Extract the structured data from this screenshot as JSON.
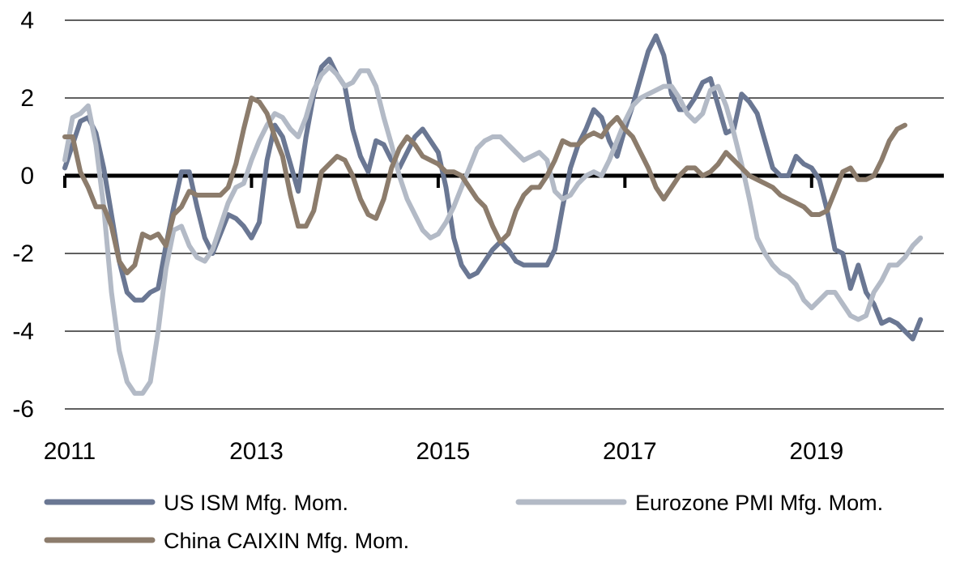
{
  "chart_data": {
    "type": "line",
    "title": "",
    "xlabel": "",
    "ylabel": "",
    "x_start": "2011-01",
    "x_step": "monthly",
    "xlim": [
      "2011-01",
      "2020-06"
    ],
    "ylim": [
      -6,
      4
    ],
    "y_ticks": [
      4,
      2,
      0,
      -2,
      -4,
      -6
    ],
    "y_tick_labels": [
      "4",
      "2",
      "0",
      "-2",
      "-4",
      "-6"
    ],
    "x_ticks": [
      "2011-01",
      "2013-01",
      "2015-01",
      "2017-01",
      "2019-01"
    ],
    "x_tick_labels": [
      "2011",
      "2013",
      "2015",
      "2017",
      "2019"
    ],
    "grid": true,
    "legend_position": "bottom",
    "series": [
      {
        "name": "US ISM Mfg. Mom.",
        "color": "#6a7793",
        "values": [
          0.2,
          0.8,
          1.4,
          1.5,
          1.1,
          0.2,
          -1.0,
          -2.2,
          -3.0,
          -3.2,
          -3.2,
          -3.0,
          -2.9,
          -1.8,
          -0.8,
          0.1,
          0.1,
          -0.8,
          -1.6,
          -2.0,
          -1.5,
          -1.0,
          -1.1,
          -1.3,
          -1.6,
          -1.2,
          0.4,
          1.3,
          1.0,
          0.3,
          -0.4,
          1.0,
          2.1,
          2.8,
          3.0,
          2.6,
          2.3,
          1.2,
          0.5,
          0.1,
          0.9,
          0.8,
          0.4,
          0.2,
          0.6,
          1.0,
          1.2,
          0.9,
          0.6,
          -0.3,
          -1.6,
          -2.3,
          -2.6,
          -2.5,
          -2.2,
          -1.9,
          -1.7,
          -1.9,
          -2.2,
          -2.3,
          -2.3,
          -2.3,
          -2.3,
          -1.9,
          -0.8,
          0.2,
          0.8,
          1.2,
          1.7,
          1.5,
          0.9,
          0.5,
          1.2,
          1.8,
          2.5,
          3.2,
          3.6,
          3.1,
          2.1,
          1.7,
          1.7,
          2.0,
          2.4,
          2.5,
          1.8,
          1.1,
          1.2,
          2.1,
          1.9,
          1.6,
          0.9,
          0.2,
          0.0,
          0.0,
          0.5,
          0.3,
          0.2,
          -0.1,
          -0.9,
          -1.9,
          -2.0,
          -2.9,
          -2.3,
          -3.0,
          -3.3,
          -3.8,
          -3.7,
          -3.8,
          -4.0,
          -4.2,
          -3.7
        ]
      },
      {
        "name": "Eurozone PMI Mfg. Mom.",
        "color": "#b3bac6",
        "values": [
          0.4,
          1.5,
          1.6,
          1.8,
          0.8,
          -0.8,
          -3.0,
          -4.5,
          -5.3,
          -5.6,
          -5.6,
          -5.3,
          -4.0,
          -2.4,
          -1.4,
          -1.3,
          -1.8,
          -2.1,
          -2.2,
          -1.9,
          -1.3,
          -0.7,
          -0.3,
          -0.2,
          0.4,
          0.9,
          1.3,
          1.6,
          1.5,
          1.2,
          1.0,
          1.5,
          2.2,
          2.6,
          2.8,
          2.6,
          2.3,
          2.4,
          2.7,
          2.7,
          2.3,
          1.5,
          0.8,
          0.0,
          -0.6,
          -1.0,
          -1.4,
          -1.6,
          -1.5,
          -1.2,
          -0.8,
          -0.3,
          0.2,
          0.7,
          0.9,
          1.0,
          1.0,
          0.8,
          0.6,
          0.4,
          0.5,
          0.6,
          0.4,
          -0.4,
          -0.6,
          -0.5,
          -0.2,
          0.0,
          0.1,
          0.0,
          0.4,
          0.9,
          1.4,
          1.8,
          2.0,
          2.1,
          2.2,
          2.3,
          2.3,
          2.0,
          1.6,
          1.4,
          1.6,
          2.2,
          2.3,
          1.8,
          1.1,
          0.3,
          -0.6,
          -1.6,
          -2.0,
          -2.3,
          -2.5,
          -2.6,
          -2.8,
          -3.2,
          -3.4,
          -3.2,
          -3.0,
          -3.0,
          -3.3,
          -3.6,
          -3.7,
          -3.6,
          -3.0,
          -2.7,
          -2.3,
          -2.3,
          -2.1,
          -1.8,
          -1.6
        ]
      },
      {
        "name": "China CAIXIN Mfg. Mom.",
        "color": "#8c7c6c",
        "values": [
          1.0,
          1.0,
          0.1,
          -0.3,
          -0.8,
          -0.8,
          -1.3,
          -2.2,
          -2.5,
          -2.3,
          -1.5,
          -1.6,
          -1.5,
          -1.8,
          -1.0,
          -0.8,
          -0.4,
          -0.5,
          -0.5,
          -0.5,
          -0.5,
          -0.3,
          0.3,
          1.2,
          2.0,
          1.9,
          1.6,
          1.0,
          0.5,
          -0.5,
          -1.3,
          -1.3,
          -0.9,
          0.1,
          0.3,
          0.5,
          0.4,
          0.0,
          -0.6,
          -1.0,
          -1.1,
          -0.6,
          0.2,
          0.7,
          1.0,
          0.8,
          0.5,
          0.4,
          0.3,
          0.1,
          0.1,
          0.0,
          -0.3,
          -0.6,
          -0.8,
          -1.3,
          -1.7,
          -1.5,
          -0.9,
          -0.5,
          -0.3,
          -0.3,
          0.0,
          0.4,
          0.9,
          0.8,
          0.8,
          1.0,
          1.1,
          1.0,
          1.3,
          1.5,
          1.2,
          1.0,
          0.6,
          0.2,
          -0.3,
          -0.6,
          -0.3,
          0.0,
          0.2,
          0.2,
          0.0,
          0.1,
          0.3,
          0.6,
          0.4,
          0.2,
          0.0,
          -0.1,
          -0.2,
          -0.3,
          -0.5,
          -0.6,
          -0.7,
          -0.8,
          -1.0,
          -1.0,
          -0.9,
          -0.4,
          0.1,
          0.2,
          -0.1,
          -0.1,
          0.0,
          0.4,
          0.9,
          1.2,
          1.3
        ]
      }
    ]
  }
}
